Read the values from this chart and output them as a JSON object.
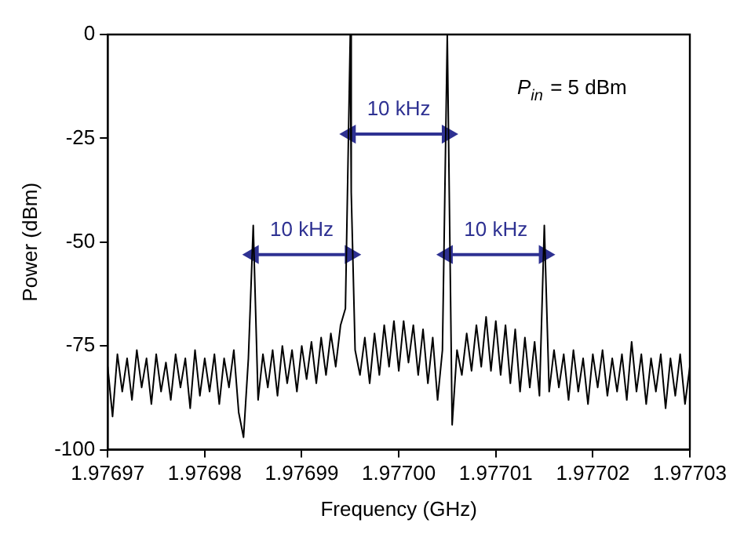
{
  "chart_data": {
    "type": "line",
    "xlabel": "Frequency (GHz)",
    "ylabel": "Power (dBm)",
    "xlim": [
      1.97697,
      1.97703
    ],
    "ylim": [
      -100,
      0
    ],
    "xticks": [
      1.97697,
      1.97698,
      1.97699,
      {
        "value": 1.977,
        "label": "1.97700"
      },
      1.97701,
      1.97702,
      1.97703
    ],
    "yticks": [
      -100,
      -75,
      -50,
      -25,
      0
    ],
    "grid": false,
    "legend": false,
    "marker": "none",
    "line_style": "solid",
    "annotations": [
      "P$_{in}$ = 5 dBm",
      {
        "text": "10 kHz",
        "x": 1.97699,
        "y": -53
      },
      {
        "text": "10 kHz",
        "x": 1.977,
        "y": -24
      },
      {
        "text": "10 kHz",
        "x": 1.97701,
        "y": -53
      }
    ],
    "series": [
      {
        "color": "#000000",
        "x": [
          1.97697,
          1.9769705,
          1.976971,
          1.9769715,
          1.976972,
          1.9769725,
          1.976973,
          1.9769735,
          1.976974,
          1.9769745,
          1.976975,
          1.9769755,
          1.976976,
          1.9769765,
          1.976977,
          1.9769775,
          1.976978,
          1.9769785,
          1.976979,
          1.9769795,
          1.97698,
          1.9769805,
          1.976981,
          1.9769815,
          1.976982,
          1.9769825,
          1.976983,
          1.9769835,
          1.976984,
          1.9769845,
          1.976985,
          1.9769855,
          1.976986,
          1.9769865,
          1.976987,
          1.9769875,
          1.976988,
          1.9769885,
          1.976989,
          1.9769895,
          1.97699,
          1.9769905,
          1.976991,
          1.9769915,
          1.976992,
          1.9769925,
          1.976993,
          1.9769935,
          1.976994,
          1.9769945,
          1.976995,
          1.9769951,
          1.9769955,
          1.976996,
          1.9769965,
          1.976997,
          1.9769975,
          1.976998,
          1.9769985,
          1.976999,
          1.9769995,
          1.977,
          1.9770005,
          1.977001,
          1.9770015,
          1.977002,
          1.9770025,
          1.977003,
          1.9770035,
          1.977004,
          1.9770045,
          1.977005,
          1.9770055,
          1.977006,
          1.9770065,
          1.977007,
          1.9770075,
          1.977008,
          1.9770085,
          1.977009,
          1.9770095,
          1.97701,
          1.9770105,
          1.977011,
          1.9770115,
          1.977012,
          1.9770125,
          1.977013,
          1.9770135,
          1.977014,
          1.9770145,
          1.977015,
          1.9770155,
          1.977016,
          1.9770165,
          1.977017,
          1.9770175,
          1.977018,
          1.9770185,
          1.977019,
          1.9770195,
          1.97702,
          1.9770205,
          1.977021,
          1.9770215,
          1.977022,
          1.9770225,
          1.977023,
          1.9770235,
          1.977024,
          1.9770245,
          1.977025,
          1.9770255,
          1.977026,
          1.9770265,
          1.977027,
          1.9770275,
          1.977028,
          1.9770285,
          1.977029,
          1.9770295,
          1.97703
        ],
        "values": [
          -80,
          -92,
          -77,
          -86,
          -78,
          -88,
          -76,
          -85,
          -78,
          -89,
          -77,
          -86,
          -79,
          -88,
          -77,
          -85,
          -78,
          -90,
          -76,
          -87,
          -78,
          -86,
          -77,
          -89,
          -78,
          -85,
          -76,
          -91,
          -97,
          -78,
          -46,
          -88,
          -77,
          -85,
          -76,
          -87,
          -75,
          -84,
          -76,
          -86,
          -75,
          -83,
          -74,
          -84,
          -73,
          -82,
          -72,
          -80,
          -70,
          -66,
          0,
          -38,
          -76,
          -82,
          -73,
          -84,
          -72,
          -82,
          -70,
          -80,
          -69,
          -81,
          -69,
          -79,
          -70,
          -82,
          -71,
          -84,
          -73,
          -88,
          -76,
          0,
          -94,
          -76,
          -82,
          -72,
          -81,
          -70,
          -80,
          -68,
          -81,
          -69,
          -82,
          -70,
          -84,
          -71,
          -86,
          -73,
          -85,
          -74,
          -87,
          -46,
          -86,
          -76,
          -85,
          -77,
          -88,
          -76,
          -86,
          -78,
          -89,
          -77,
          -85,
          -76,
          -87,
          -78,
          -86,
          -77,
          -88,
          -74,
          -86,
          -77,
          -89,
          -78,
          -86,
          -77,
          -90,
          -78,
          -87,
          -77,
          -89,
          -80
        ]
      },
      {
        "type": "line",
        "marker": "triangle",
        "color": "#2e3192",
        "x": [
          1.976985,
          1.976995
        ],
        "values": [
          -53,
          -53
        ]
      },
      {
        "type": "line",
        "marker": "triangle",
        "color": "#2e3192",
        "x": [
          1.976995,
          1.977005
        ],
        "values": [
          -24,
          -24
        ]
      },
      {
        "type": "line",
        "marker": "triangle",
        "color": "#2e3192",
        "x": [
          1.977005,
          1.977015
        ],
        "values": [
          -53,
          -53
        ]
      }
    ]
  }
}
